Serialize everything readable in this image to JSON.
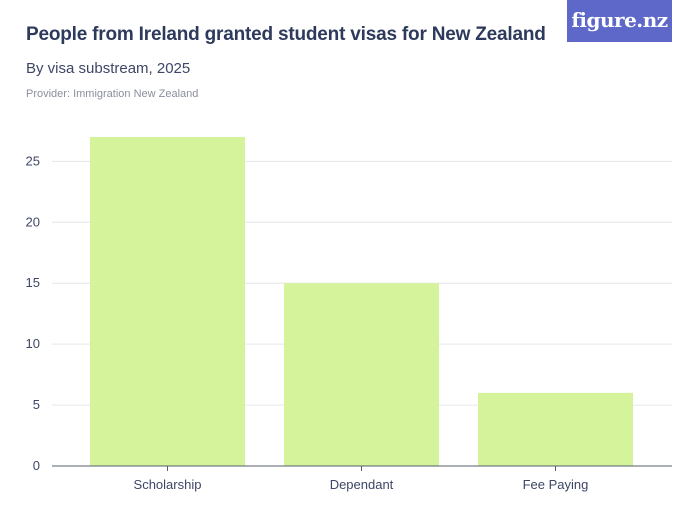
{
  "header": {
    "title": "People from Ireland granted student visas for New Zealand",
    "subtitle": "By visa substream, 2025",
    "provider": "Provider: Immigration New Zealand"
  },
  "logo": {
    "text": "figure.nz"
  },
  "colors": {
    "bar": "#d4f39b",
    "grid": "#e4e6ea",
    "axis": "#555c6e",
    "logo_bg": "#5e68c8"
  },
  "chart_data": {
    "type": "bar",
    "title": "People from Ireland granted student visas for New Zealand",
    "subtitle": "By visa substream, 2025",
    "categories": [
      "Scholarship",
      "Dependant",
      "Fee Paying"
    ],
    "values": [
      27,
      15,
      6
    ],
    "ylim": [
      0,
      27
    ],
    "yticks": [
      0,
      5,
      10,
      15,
      20,
      25
    ],
    "xlabel": "",
    "ylabel": "",
    "grid": true
  }
}
